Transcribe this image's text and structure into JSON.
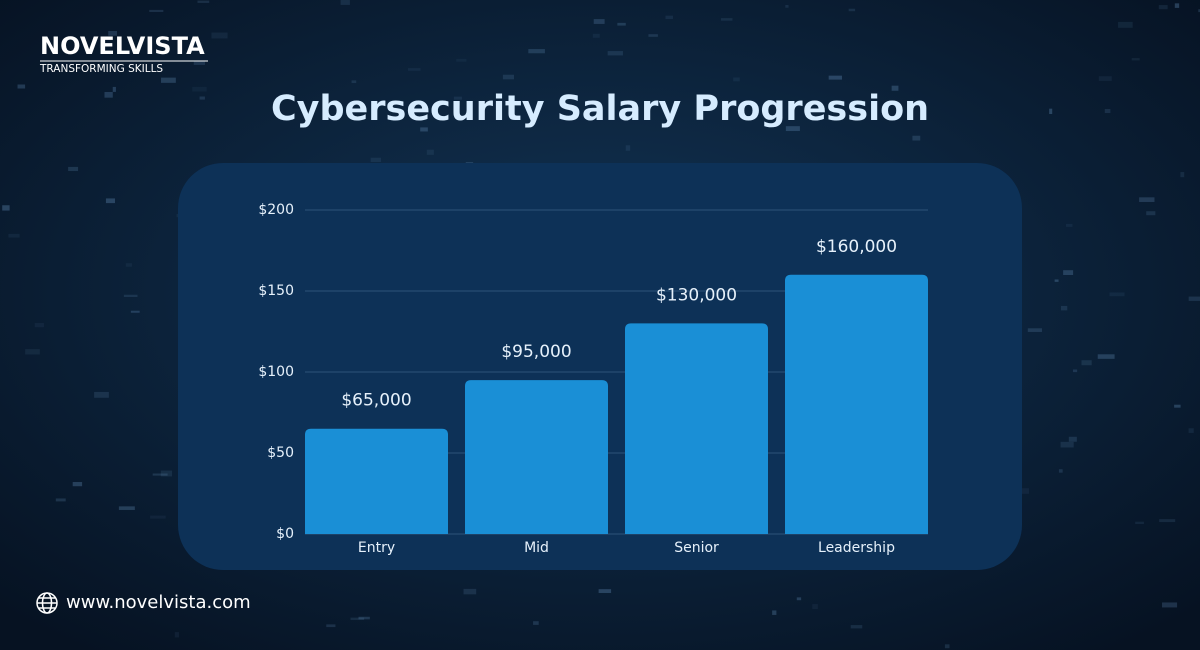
{
  "logo": {
    "name": "NOVELVISTA",
    "tagline": "TRANSFORMING SKILLS"
  },
  "website": "www.novelvista.com",
  "chart_data": {
    "type": "bar",
    "title": "Cybersecurity Salary Progression",
    "categories": [
      "Entry",
      "Mid",
      "Senior",
      "Leadership"
    ],
    "values": [
      65,
      95,
      130,
      160
    ],
    "value_labels": [
      "$65,000",
      "$95,000",
      "$130,000",
      "$160,000"
    ],
    "color": "#1a8fd6",
    "ylim": [
      0,
      200
    ],
    "yticks": [
      {
        "value": 0,
        "label": "$0"
      },
      {
        "value": 50,
        "label": "$50"
      },
      {
        "value": 100,
        "label": "$100"
      },
      {
        "value": 150,
        "label": "$150"
      },
      {
        "value": 200,
        "label": "$200"
      }
    ],
    "grid": true
  }
}
